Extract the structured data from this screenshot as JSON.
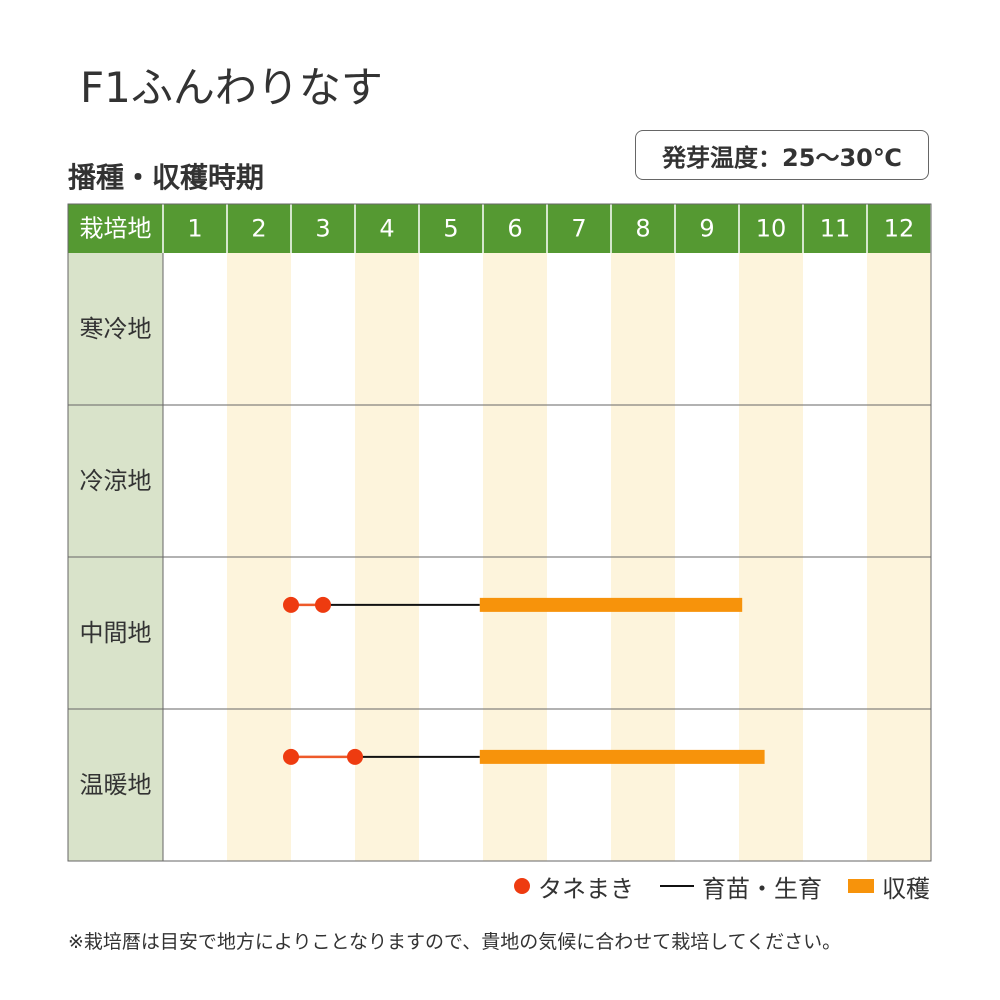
{
  "title": "F1ふんわりなす",
  "section_title": "播種・収穫時期",
  "germination_temp": "発芽温度：25〜30℃",
  "chart_data": {
    "type": "gantt",
    "header_label": "栽培地",
    "months": [
      "1",
      "2",
      "3",
      "4",
      "5",
      "6",
      "7",
      "8",
      "9",
      "10",
      "11",
      "12"
    ],
    "rows": [
      {
        "region": "寒冷地",
        "sowing": [],
        "growing": null,
        "harvest": null
      },
      {
        "region": "冷涼地",
        "sowing": [],
        "growing": null,
        "harvest": null
      },
      {
        "region": "中間地",
        "sowing": [
          3.0,
          3.5
        ],
        "growing": [
          3.5,
          5.95
        ],
        "harvest": [
          5.95,
          10.05
        ]
      },
      {
        "region": "温暖地",
        "sowing": [
          3.0,
          4.0
        ],
        "growing": [
          4.0,
          5.95
        ],
        "harvest": [
          5.95,
          10.4
        ]
      }
    ],
    "legend": [
      {
        "key": "sowing",
        "label": "タネまき",
        "color": "#ee3b10"
      },
      {
        "key": "growing",
        "label": "育苗・生育",
        "color": "#111111"
      },
      {
        "key": "harvest",
        "label": "収穫",
        "color": "#f7930b"
      }
    ]
  },
  "colors": {
    "header_bg": "#559932",
    "header_text": "#ffffff",
    "region_bg": "#d9e3ca",
    "stripe": "#fdf4dc",
    "grid": "#666666",
    "sowing": "#ee3b10",
    "sowing_line": "#ee5a2a",
    "growing": "#111111",
    "harvest": "#f7930b"
  },
  "footnote": "※栽培暦は目安で地方によりことなりますので、貴地の気候に合わせて栽培してください。"
}
